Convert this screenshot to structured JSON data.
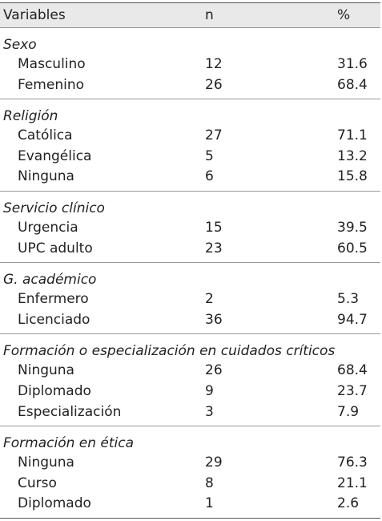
{
  "header": {
    "variables": "Variables",
    "n": "n",
    "pct": "%"
  },
  "sections": [
    {
      "title": "Sexo",
      "rows": [
        {
          "label": "Masculino",
          "n": "12",
          "pct": "31.6"
        },
        {
          "label": "Femenino",
          "n": "26",
          "pct": "68.4"
        }
      ]
    },
    {
      "title": "Religión",
      "rows": [
        {
          "label": "Católica",
          "n": "27",
          "pct": "71.1"
        },
        {
          "label": "Evangélica",
          "n": "5",
          "pct": "13.2"
        },
        {
          "label": "Ninguna",
          "n": "6",
          "pct": "15.8"
        }
      ]
    },
    {
      "title": "Servicio clínico",
      "rows": [
        {
          "label": "Urgencia",
          "n": "15",
          "pct": "39.5"
        },
        {
          "label": "UPC adulto",
          "n": "23",
          "pct": "60.5"
        }
      ]
    },
    {
      "title": "G. académico",
      "rows": [
        {
          "label": "Enfermero",
          "n": "2",
          "pct": "5.3"
        },
        {
          "label": "Licenciado",
          "n": "36",
          "pct": "94.7"
        }
      ]
    },
    {
      "title": "Formación o especialización en cuidados críticos",
      "rows": [
        {
          "label": "Ninguna",
          "n": "26",
          "pct": "68.4"
        },
        {
          "label": "Diplomado",
          "n": "9",
          "pct": "23.7"
        },
        {
          "label": "Especialización",
          "n": "3",
          "pct": "7.9"
        }
      ]
    },
    {
      "title": "Formación en ética",
      "rows": [
        {
          "label": "Ninguna",
          "n": "29",
          "pct": "76.3"
        },
        {
          "label": "Curso",
          "n": "8",
          "pct": "21.1"
        },
        {
          "label": "Diplomado",
          "n": "1",
          "pct": "2.6"
        }
      ]
    }
  ]
}
